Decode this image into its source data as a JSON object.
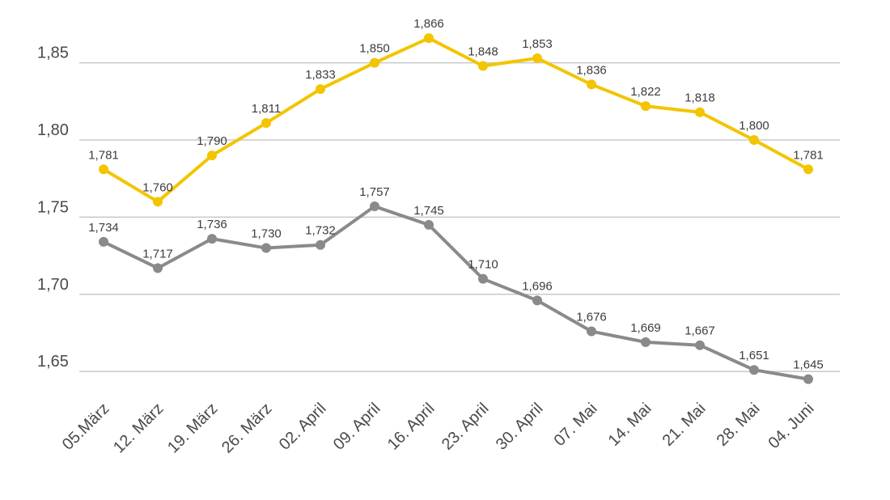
{
  "chart_data": {
    "type": "line",
    "title": "",
    "xlabel": "",
    "ylabel": "",
    "ylim": [
      1.638,
      1.875
    ],
    "yticks": [
      {
        "value": 1.65,
        "label": "1,65"
      },
      {
        "value": 1.7,
        "label": "1,70"
      },
      {
        "value": 1.75,
        "label": "1,75"
      },
      {
        "value": 1.8,
        "label": "1,80"
      },
      {
        "value": 1.85,
        "label": "1,85"
      }
    ],
    "grid": "horizontal",
    "legend": "none",
    "categories": [
      "05.März",
      "12. März",
      "19. März",
      "26. März",
      "02. April",
      "09. April",
      "16. April",
      "23. April",
      "30. April",
      "07. Mai",
      "14. Mai",
      "21. Mai",
      "28. Mai",
      "04. Juni"
    ],
    "series": [
      {
        "color": "#f2c500",
        "values": [
          1.781,
          1.76,
          1.79,
          1.811,
          1.833,
          1.85,
          1.866,
          1.848,
          1.853,
          1.836,
          1.822,
          1.818,
          1.8,
          1.781
        ],
        "labels": [
          "1,781",
          "1,760",
          "1,790",
          "1,811",
          "1,833",
          "1,850",
          "1,866",
          "1,848",
          "1,853",
          "1,836",
          "1,822",
          "1,818",
          "1,800",
          "1,781"
        ]
      },
      {
        "color": "#8a8a8a",
        "values": [
          1.734,
          1.717,
          1.736,
          1.73,
          1.732,
          1.757,
          1.745,
          1.71,
          1.696,
          1.676,
          1.669,
          1.667,
          1.651,
          1.645
        ],
        "labels": [
          "1,734",
          "1,717",
          "1,736",
          "1,730",
          "1,732",
          "1,757",
          "1,745",
          "1,710",
          "1,696",
          "1,676",
          "1,669",
          "1,667",
          "1,651",
          "1,645"
        ]
      }
    ]
  }
}
